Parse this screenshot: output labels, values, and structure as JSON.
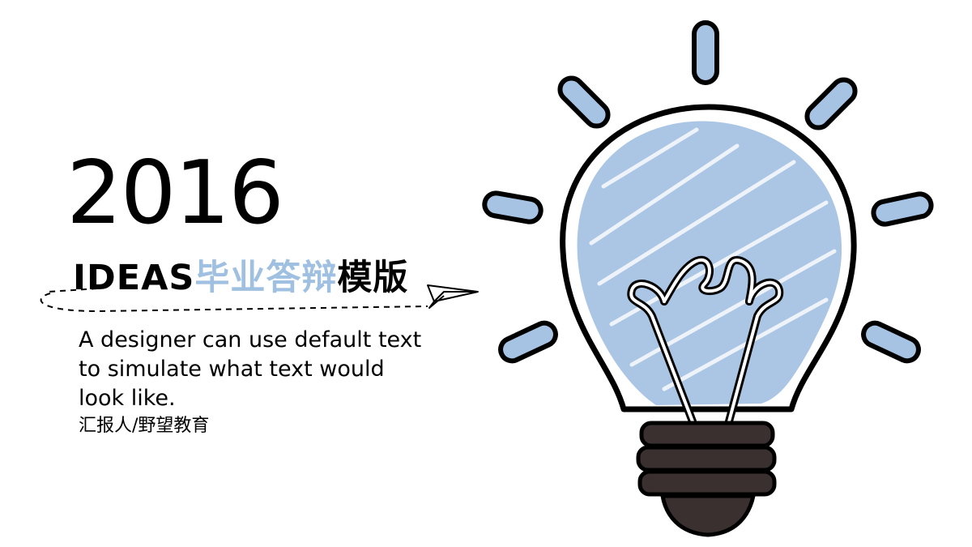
{
  "slide": {
    "year": "2016",
    "title_prefix": "IDEAS",
    "title_highlight": "毕业答辩",
    "title_suffix": "模版",
    "description": "A designer can use default text to simulate what text would look like.",
    "reporter": "汇报人/野望教育"
  },
  "colors": {
    "accent_blue": "#9fc0e0",
    "text": "#000000",
    "bulb_base": "#3a3030"
  },
  "icons": [
    "paper-plane-icon",
    "lightbulb-icon"
  ]
}
